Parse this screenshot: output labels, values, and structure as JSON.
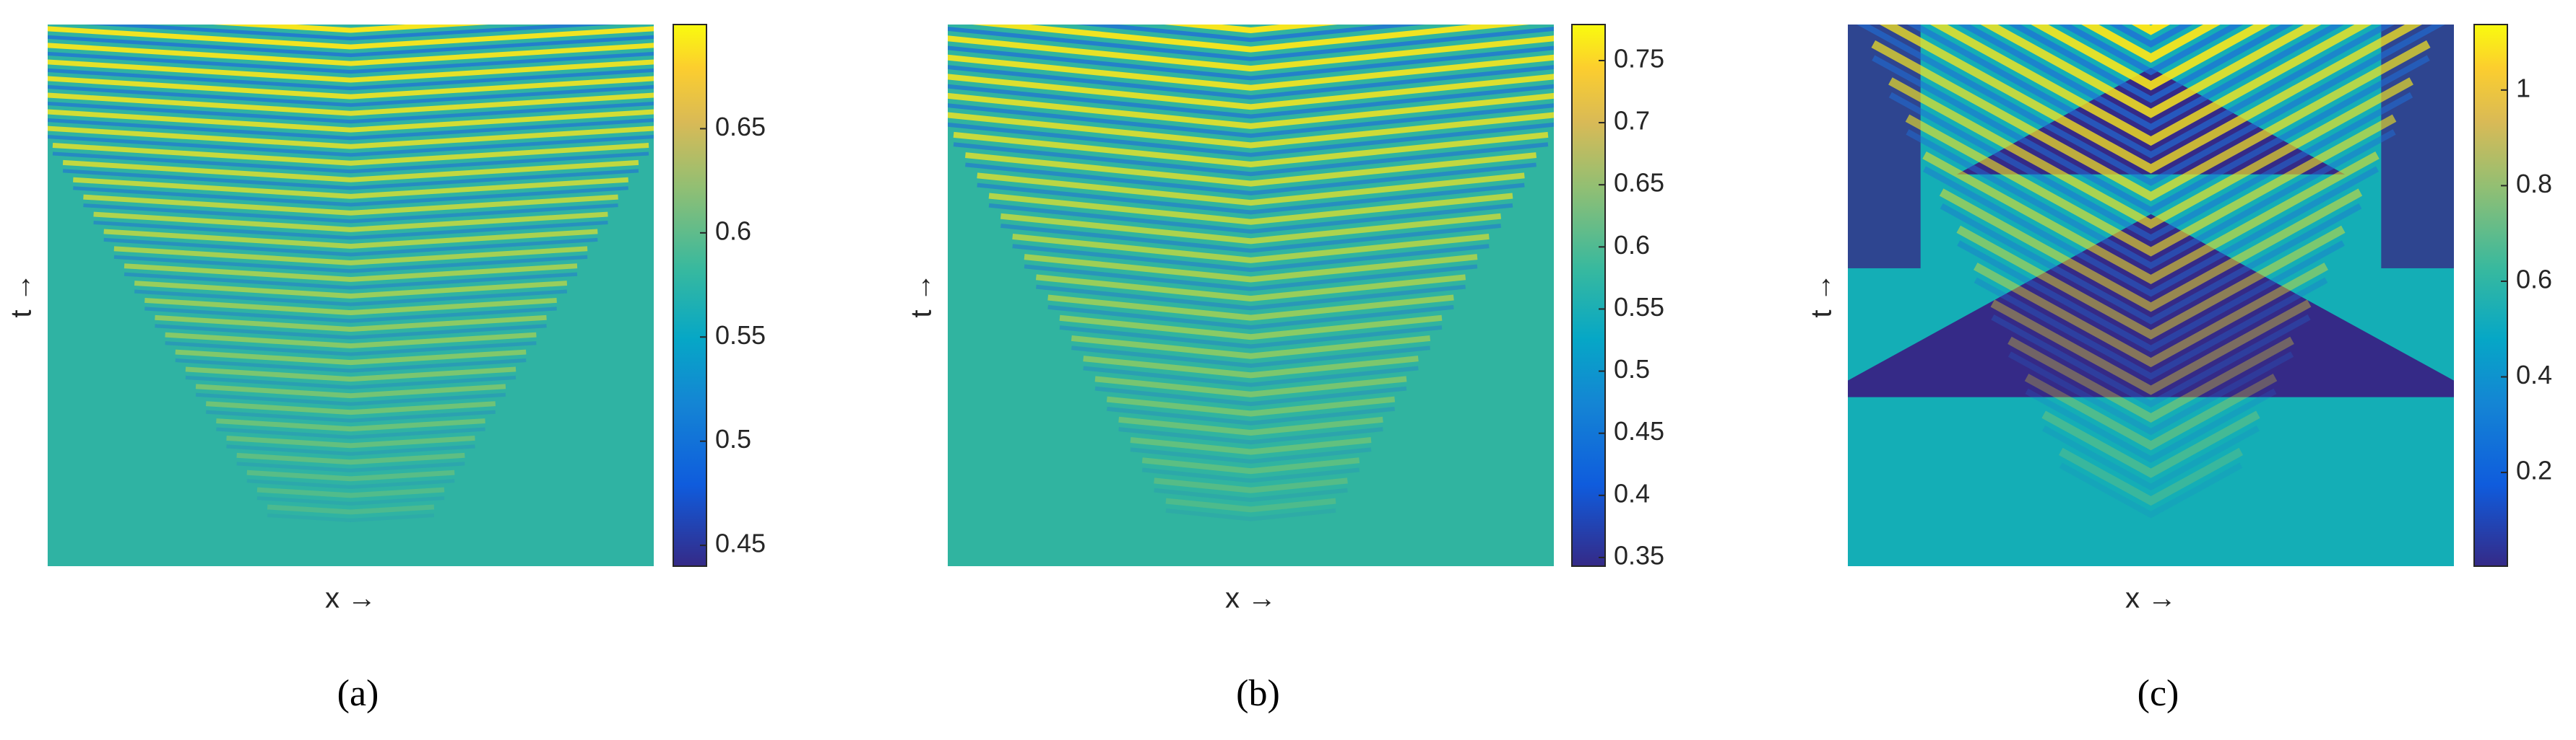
{
  "chart_data": [
    {
      "type": "heatmap",
      "xlabel": "x →",
      "ylabel": "t →",
      "caption": "(a)",
      "clim": [
        0.44,
        0.7
      ],
      "cticks": [
        0.45,
        0.5,
        0.55,
        0.6,
        0.65
      ]
    },
    {
      "type": "heatmap",
      "xlabel": "x →",
      "ylabel": "t →",
      "caption": "(b)",
      "clim": [
        0.343,
        0.779
      ],
      "cticks": [
        0.35,
        0.4,
        0.45,
        0.5,
        0.55,
        0.6,
        0.65,
        0.7,
        0.75
      ]
    },
    {
      "type": "heatmap",
      "xlabel": "x →",
      "ylabel": "t →",
      "caption": "(c)",
      "clim": [
        0.004,
        1.137
      ],
      "cticks": [
        0.2,
        0.4,
        0.6,
        0.8,
        1
      ]
    }
  ]
}
